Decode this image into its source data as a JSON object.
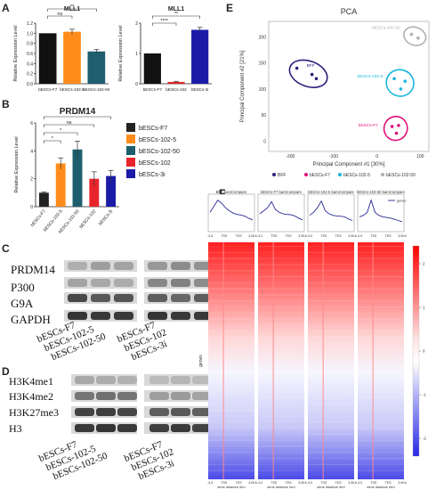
{
  "panels": {
    "A": "A",
    "B": "B",
    "C": "C",
    "D": "D",
    "E": "E",
    "F": "F"
  },
  "chart_data": [
    {
      "id": "A1",
      "type": "bar",
      "title": "MLL1",
      "ylabel": "Relative Expression Level",
      "categories": [
        "bESCs-F7",
        "bESCs-102-5",
        "bESCs-102-50"
      ],
      "values": [
        1.0,
        1.03,
        0.64
      ],
      "errors": [
        0.0,
        0.05,
        0.04
      ],
      "colors": [
        "#111111",
        "#ff8c1a",
        "#1e5e6e"
      ],
      "ylim": [
        0,
        1.2
      ],
      "yticks": [
        "0.0",
        "0.2",
        "0.4",
        "0.6",
        "0.8",
        "1.0",
        "1.2"
      ],
      "sig": [
        {
          "from": 0,
          "to": 1,
          "label": "ns"
        },
        {
          "from": 0,
          "to": 2,
          "label": "**"
        }
      ]
    },
    {
      "id": "A2",
      "type": "bar",
      "title": "MLL1",
      "ylabel": "Relative Expression Level",
      "categories": [
        "bESCs-F7",
        "bESCs-102",
        "bESCs-3i"
      ],
      "values": [
        1.0,
        0.06,
        1.78
      ],
      "errors": [
        0.0,
        0.02,
        0.08
      ],
      "colors": [
        "#111111",
        "#e8242b",
        "#1b1ba8"
      ],
      "ylim": [
        0,
        2.0
      ],
      "yticks": [
        "0",
        "1",
        "2"
      ],
      "sig": [
        {
          "from": 0,
          "to": 1,
          "label": "****"
        },
        {
          "from": 0,
          "to": 2,
          "label": "**"
        }
      ]
    },
    {
      "id": "B",
      "type": "bar",
      "title": "PRDM14",
      "ylabel": "Relative Expression Level",
      "categories": [
        "bESCs-F7",
        "bESCs-102-5",
        "bESCs-102-50",
        "bESCs-102",
        "bESCs-3i"
      ],
      "values": [
        1.0,
        3.1,
        4.1,
        2.0,
        2.2
      ],
      "errors": [
        0.05,
        0.4,
        0.6,
        0.5,
        0.4
      ],
      "colors": [
        "#222222",
        "#ff8c1a",
        "#1e5e6e",
        "#e8242b",
        "#1b1ba8"
      ],
      "ylim": [
        0,
        6
      ],
      "yticks": [
        "0",
        "2",
        "4",
        "6"
      ],
      "legend": [
        "bESCs-F7",
        "bESCs-102-5",
        "bESCs-102-50",
        "bESCs-102",
        "bESCs-3i"
      ],
      "sig": [
        {
          "from": 0,
          "to": 1,
          "label": "*"
        },
        {
          "from": 0,
          "to": 2,
          "label": "*"
        },
        {
          "from": 0,
          "to": 3,
          "label": "ns"
        },
        {
          "from": 0,
          "to": 4,
          "label": "*"
        }
      ]
    },
    {
      "id": "E",
      "type": "scatter",
      "title": "PCA",
      "xlabel": "Principal Component #1 [30%]",
      "ylabel": "Principal Component #2 [21%]",
      "xticks": [
        "-200",
        "-100",
        "0",
        "100"
      ],
      "yticks": [
        "0",
        "50",
        "100",
        "150",
        "200"
      ],
      "series": [
        {
          "name": "BFF",
          "color": "#2b1f7a",
          "points": [
            [
              -185,
              140
            ],
            [
              -150,
              128
            ],
            [
              -140,
              120
            ]
          ]
        },
        {
          "name": "bESCs-F7",
          "color": "#e0107a",
          "points": [
            [
              35,
              28
            ],
            [
              50,
              30
            ],
            [
              45,
              15
            ]
          ]
        },
        {
          "name": "bESCs-102-5",
          "color": "#19b5e0",
          "points": [
            [
              40,
              120
            ],
            [
              65,
              115
            ],
            [
              55,
              100
            ]
          ]
        },
        {
          "name": "bESCs-102-50",
          "color": "#b0b0b0",
          "points": [
            [
              80,
              205
            ],
            [
              95,
              198
            ]
          ]
        }
      ],
      "group_labels": [
        "BFF",
        "bESCs-F7",
        "bESCs-102-5",
        "bESCs-102-50"
      ]
    }
  ],
  "blotC": {
    "rows": [
      "PRDM14",
      "P300",
      "G9A",
      "GAPDH"
    ],
    "lanes": [
      "bESCs-F7",
      "bESCs-102-5",
      "bESCs-102-50",
      "bESCs-F7",
      "bESCs-102",
      "bESCs-3i"
    ]
  },
  "blotD": {
    "rows": [
      "H3K4me1",
      "H3K4me2",
      "H3K27me3",
      "H3"
    ],
    "lanes": [
      "bESCs-F7",
      "bESCs-102-5",
      "bESCs-102-50",
      "bESCs-F7",
      "bESCs-102",
      "bESCs-3i"
    ]
  },
  "heatmap": {
    "titles": [
      "BFF bamCompare",
      "bESCs-F7 bamCompare",
      "bESCs-102-5 bamCompare",
      "bESCs-102-50 bamCompare"
    ],
    "xticks": [
      "-3.0",
      "TSS",
      "TES",
      "3.0Kb"
    ],
    "xlabel": "gene distance (bp)",
    "ylabel": "genes",
    "legend": "genes",
    "colorbar": [
      "2",
      "1",
      "0",
      "-1",
      "-2"
    ]
  }
}
